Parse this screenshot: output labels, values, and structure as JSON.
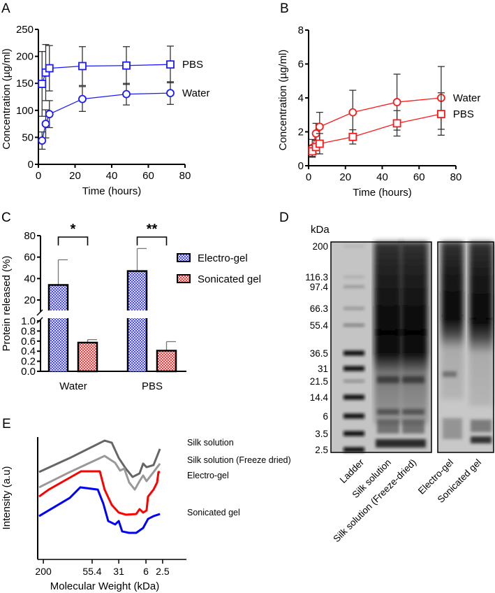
{
  "panels": {
    "a": "A",
    "b": "B",
    "c": "C",
    "d": "D",
    "e": "E"
  },
  "chart_data": [
    {
      "id": "A",
      "type": "line",
      "xlabel": "Time (hours)",
      "ylabel": "Concentration (µg/ml)",
      "xlim": [
        0,
        80
      ],
      "ylim": [
        0,
        250
      ],
      "xticks": [
        0,
        20,
        40,
        60,
        80
      ],
      "yticks": [
        0,
        50,
        100,
        150,
        200,
        250
      ],
      "color": "#1a1aff",
      "series": [
        {
          "name": "PBS",
          "marker": "square",
          "x": [
            2,
            4,
            6,
            24,
            48,
            72
          ],
          "y": [
            149,
            170,
            178,
            182,
            183,
            185
          ],
          "err": [
            60,
            52,
            42,
            36,
            35,
            34
          ]
        },
        {
          "name": "Water",
          "marker": "circle",
          "x": [
            2,
            4,
            6,
            24,
            48,
            72
          ],
          "y": [
            44,
            75,
            93,
            121,
            130,
            132
          ],
          "err": [
            16,
            26,
            25,
            23,
            20,
            21
          ]
        }
      ]
    },
    {
      "id": "B",
      "type": "line",
      "xlabel": "Time (hours)",
      "ylabel": "Concentration (µg/ml)",
      "xlim": [
        0,
        80
      ],
      "ylim": [
        0,
        8
      ],
      "xticks": [
        0,
        20,
        40,
        60,
        80
      ],
      "yticks": [
        0,
        2,
        4,
        6,
        8
      ],
      "color": "#ff1a1a",
      "series": [
        {
          "name": "Water",
          "marker": "circle",
          "x": [
            2,
            4,
            6,
            24,
            48,
            72
          ],
          "y": [
            1.05,
            1.9,
            2.3,
            3.15,
            3.75,
            4.0
          ],
          "err": [
            0.5,
            0.6,
            0.85,
            1.3,
            1.65,
            1.85
          ]
        },
        {
          "name": "PBS",
          "marker": "square",
          "x": [
            2,
            4,
            6,
            24,
            48,
            72
          ],
          "y": [
            0.85,
            1.1,
            1.3,
            1.7,
            2.5,
            3.05
          ],
          "err": [
            0.35,
            0.4,
            0.6,
            0.42,
            0.75,
            1.25
          ]
        }
      ]
    },
    {
      "id": "C",
      "type": "bar",
      "ylabel": "Protein released (%)",
      "categories": [
        "Water",
        "PBS"
      ],
      "yticks_upper": [
        20,
        40,
        60,
        80
      ],
      "yticks_lower": [
        "0.0",
        "0.2",
        "0.4",
        "0.6",
        "0.8",
        "1.0"
      ],
      "ylim_lower": [
        0,
        1
      ],
      "ylim_upper": [
        10,
        80
      ],
      "axis_break": true,
      "legend_position": "right",
      "series": [
        {
          "name": "Electro-gel",
          "color": "#2b2bff",
          "values": [
            34,
            47
          ],
          "err": [
            23.5,
            21
          ]
        },
        {
          "name": "Sonicated gel",
          "color": "#ff2b2b",
          "values": [
            0.57,
            0.41
          ],
          "err": [
            0.06,
            0.18
          ]
        }
      ],
      "significance": [
        "*",
        "**"
      ]
    },
    {
      "id": "D",
      "type": "gel",
      "unit_label": "kDa",
      "markers": [
        "200",
        "116.3",
        "97.4",
        "66.3",
        "55.4",
        "36.5",
        "31",
        "21.5",
        "14.4",
        "6",
        "3.5",
        "2.5"
      ],
      "lanes": [
        "Ladder",
        "Silk solution",
        "Silk solution (Freeze-dried)",
        "Electro-gel",
        "Sonicated gel"
      ]
    },
    {
      "id": "E",
      "type": "line",
      "xlabel": "Molecular Weight (kDa)",
      "ylabel": "Intensity (a.u)",
      "xticks": [
        {
          "label": "200",
          "pos": 3.8
        },
        {
          "label": "55.4",
          "pos": 36.6
        },
        {
          "label": "31",
          "pos": 54.5
        },
        {
          "label": "6",
          "pos": 72.8
        },
        {
          "label": "2.5",
          "pos": 84
        }
      ],
      "xlim": [
        0,
        100
      ],
      "ylim": [
        0,
        100
      ],
      "series": [
        {
          "name": "Silk solution",
          "color": "#666666",
          "x": [
            0.9,
            21.6,
            45,
            49.8,
            54.5,
            59.2,
            63.8,
            68.5,
            70.9,
            73.2,
            77.9,
            82.2
          ],
          "y": [
            71.4,
            82.9,
            97.1,
            95.4,
            82.9,
            74.3,
            67.4,
            70.3,
            78.3,
            75.4,
            77.1,
            90.3
          ]
        },
        {
          "name": "Silk solution (Freeze dried)",
          "color": "#999999",
          "x": [
            0.9,
            21.6,
            45,
            52.1,
            55.4,
            58.2,
            61.5,
            65.3,
            68.5,
            70.9,
            73.2,
            77.9,
            82.2
          ],
          "y": [
            58.9,
            71.4,
            84.6,
            78.9,
            72.6,
            74.3,
            62.9,
            57.1,
            64,
            68.6,
            64,
            71.4,
            78.3
          ]
        },
        {
          "name": "Electro-gel",
          "color": "#ff0000",
          "x": [
            0.9,
            7.5,
            29.1,
            41.8,
            45,
            49.8,
            54.5,
            59.2,
            66.2,
            68.5,
            70.9,
            73.2,
            74.2,
            77.9,
            80.3,
            81.2,
            82.2
          ],
          "y": [
            51.4,
            57.1,
            72,
            72,
            57.1,
            44.6,
            38.3,
            36.6,
            37.1,
            41.1,
            38.3,
            40,
            51.4,
            57.1,
            62.9,
            71.4,
            71.4
          ]
        },
        {
          "name": "Sonicated gel",
          "color": "#0000ff",
          "x": [
            0.9,
            21.6,
            28.6,
            40.4,
            44.1,
            47.4,
            52.1,
            54.5,
            56.8,
            61.5,
            66.2,
            70.9,
            74.2,
            77.9,
            82.2
          ],
          "y": [
            35.4,
            50.3,
            58.9,
            57.1,
            45.7,
            31.4,
            28.6,
            31.4,
            22.9,
            21.7,
            21.7,
            25.7,
            33.1,
            35.4,
            37.1
          ]
        }
      ]
    }
  ]
}
